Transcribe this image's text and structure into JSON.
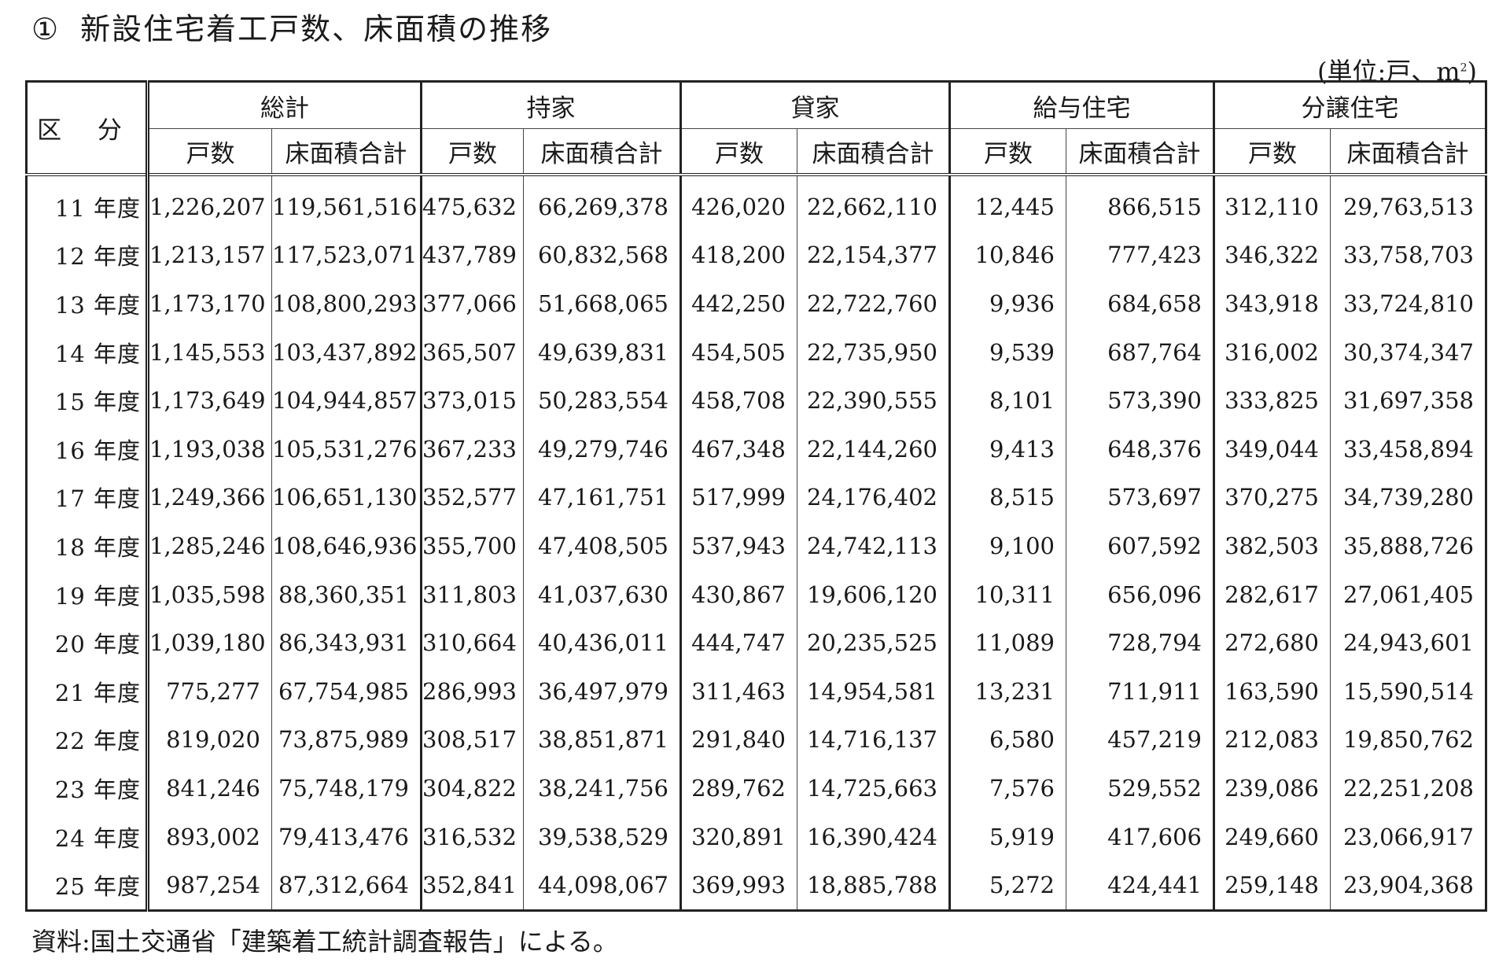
{
  "title": {
    "number": "①",
    "text": "新設住宅着工戸数、床面積の推移"
  },
  "unit": {
    "prefix": "(単位:戸、m",
    "sup": "2",
    "suffix": ")"
  },
  "header": {
    "kubun": "区 分",
    "groups": [
      "総計",
      "持家",
      "貸家",
      "給与住宅",
      "分譲住宅"
    ],
    "sub": [
      "戸数",
      "床面積合計"
    ]
  },
  "rows": [
    {
      "label": "11 年度",
      "values": [
        "1,226,207",
        "119,561,516",
        "475,632",
        "66,269,378",
        "426,020",
        "22,662,110",
        "12,445",
        "866,515",
        "312,110",
        "29,763,513"
      ]
    },
    {
      "label": "12 年度",
      "values": [
        "1,213,157",
        "117,523,071",
        "437,789",
        "60,832,568",
        "418,200",
        "22,154,377",
        "10,846",
        "777,423",
        "346,322",
        "33,758,703"
      ]
    },
    {
      "label": "13 年度",
      "values": [
        "1,173,170",
        "108,800,293",
        "377,066",
        "51,668,065",
        "442,250",
        "22,722,760",
        "9,936",
        "684,658",
        "343,918",
        "33,724,810"
      ]
    },
    {
      "label": "14 年度",
      "values": [
        "1,145,553",
        "103,437,892",
        "365,507",
        "49,639,831",
        "454,505",
        "22,735,950",
        "9,539",
        "687,764",
        "316,002",
        "30,374,347"
      ]
    },
    {
      "label": "15 年度",
      "values": [
        "1,173,649",
        "104,944,857",
        "373,015",
        "50,283,554",
        "458,708",
        "22,390,555",
        "8,101",
        "573,390",
        "333,825",
        "31,697,358"
      ]
    },
    {
      "label": "16 年度",
      "values": [
        "1,193,038",
        "105,531,276",
        "367,233",
        "49,279,746",
        "467,348",
        "22,144,260",
        "9,413",
        "648,376",
        "349,044",
        "33,458,894"
      ]
    },
    {
      "label": "17 年度",
      "values": [
        "1,249,366",
        "106,651,130",
        "352,577",
        "47,161,751",
        "517,999",
        "24,176,402",
        "8,515",
        "573,697",
        "370,275",
        "34,739,280"
      ]
    },
    {
      "label": "18 年度",
      "values": [
        "1,285,246",
        "108,646,936",
        "355,700",
        "47,408,505",
        "537,943",
        "24,742,113",
        "9,100",
        "607,592",
        "382,503",
        "35,888,726"
      ]
    },
    {
      "label": "19 年度",
      "values": [
        "1,035,598",
        "88,360,351",
        "311,803",
        "41,037,630",
        "430,867",
        "19,606,120",
        "10,311",
        "656,096",
        "282,617",
        "27,061,405"
      ]
    },
    {
      "label": "20 年度",
      "values": [
        "1,039,180",
        "86,343,931",
        "310,664",
        "40,436,011",
        "444,747",
        "20,235,525",
        "11,089",
        "728,794",
        "272,680",
        "24,943,601"
      ]
    },
    {
      "label": "21 年度",
      "values": [
        "775,277",
        "67,754,985",
        "286,993",
        "36,497,979",
        "311,463",
        "14,954,581",
        "13,231",
        "711,911",
        "163,590",
        "15,590,514"
      ]
    },
    {
      "label": "22 年度",
      "values": [
        "819,020",
        "73,875,989",
        "308,517",
        "38,851,871",
        "291,840",
        "14,716,137",
        "6,580",
        "457,219",
        "212,083",
        "19,850,762"
      ]
    },
    {
      "label": "23 年度",
      "values": [
        "841,246",
        "75,748,179",
        "304,822",
        "38,241,756",
        "289,762",
        "14,725,663",
        "7,576",
        "529,552",
        "239,086",
        "22,251,208"
      ]
    },
    {
      "label": "24 年度",
      "values": [
        "893,002",
        "79,413,476",
        "316,532",
        "39,538,529",
        "320,891",
        "16,390,424",
        "5,919",
        "417,606",
        "249,660",
        "23,066,917"
      ]
    },
    {
      "label": "25 年度",
      "values": [
        "987,254",
        "87,312,664",
        "352,841",
        "44,098,067",
        "369,993",
        "18,885,788",
        "5,272",
        "424,441",
        "259,148",
        "23,904,368"
      ]
    }
  ],
  "source": "資料:国土交通省「建築着工統計調査報告」による。"
}
